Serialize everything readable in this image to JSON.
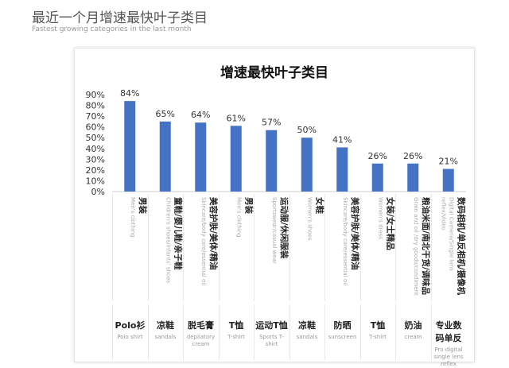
{
  "header": {
    "title": "最近一个月增速最快叶子类目",
    "subtitle": "Fastest growing categories in the last month"
  },
  "chart_data": {
    "type": "bar",
    "title": "增速最快叶子类目",
    "ylim": [
      0,
      90
    ],
    "yticks": [
      "0%",
      "10%",
      "20%",
      "30%",
      "40%",
      "50%",
      "60%",
      "70%",
      "80%",
      "90%"
    ],
    "values": [
      84,
      65,
      64,
      61,
      57,
      50,
      41,
      26,
      26,
      21
    ],
    "value_labels": [
      "84%",
      "65%",
      "64%",
      "61%",
      "57%",
      "50%",
      "41%",
      "26%",
      "26%",
      "21%"
    ],
    "bar_color": "#4472c4",
    "categories": [
      {
        "zh": "男装",
        "en": "Men's clothing",
        "product": "Polo衫",
        "product_en": "Polo shirt"
      },
      {
        "zh": "童鞋/婴儿鞋/亲子鞋",
        "en": "Children's shoes/infants' shoes",
        "product": "凉鞋",
        "product_en": "sandals"
      },
      {
        "zh": "美容护肤/美体/精油",
        "en": "Skincare/body care/essential oil",
        "product": "脱毛膏",
        "product_en": "depilatory cream"
      },
      {
        "zh": "男装",
        "en": "Men's clothing",
        "product": "T恤",
        "product_en": "T-shirt"
      },
      {
        "zh": "运动服/休闲服装",
        "en": "Sportswear/casual wear",
        "product": "运动T恤",
        "product_en": "Sports T-shirt"
      },
      {
        "zh": "女鞋",
        "en": "Women's shoes",
        "product": "凉鞋",
        "product_en": "sandals"
      },
      {
        "zh": "美容护肤/美体/精油",
        "en": "Skincare/body care/essential oil",
        "product": "防晒",
        "product_en": "sunscreen"
      },
      {
        "zh": "女装/女士精品",
        "en": "Women's dress",
        "product": "T恤",
        "product_en": "T-shirt"
      },
      {
        "zh": "粮油米面/南北干货/调味品",
        "en": "Grain and oil /dry goods/condiment",
        "product": "奶油",
        "product_en": "cream"
      },
      {
        "zh": "数码相机/单反相机/摄像机",
        "en": "Digital Camera/Single lens reflex/Video",
        "product": "专业数码单反",
        "product_en": "Pro digital single lens reflex"
      }
    ]
  }
}
